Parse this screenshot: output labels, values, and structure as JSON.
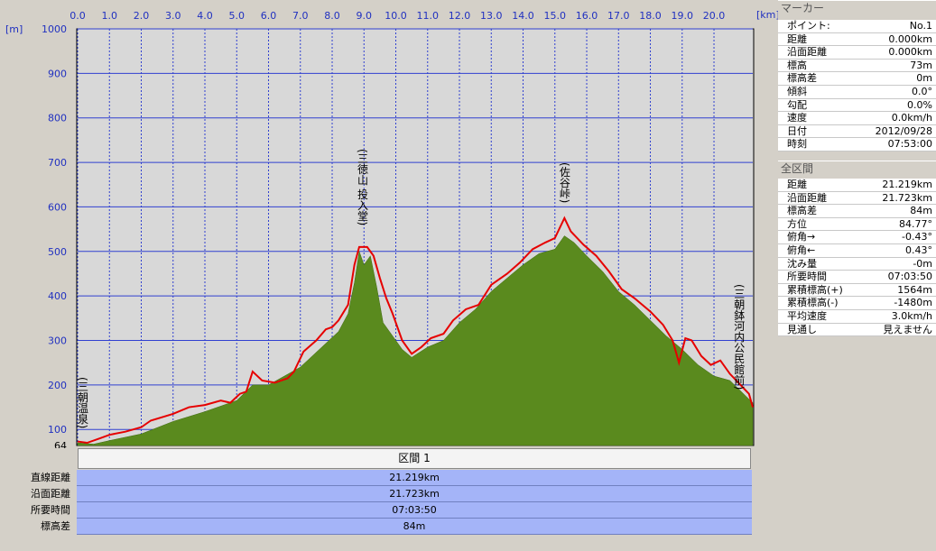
{
  "chart_data": {
    "type": "area",
    "x_unit": "[km]",
    "y_unit": "[m]",
    "xlim": [
      0,
      21.219
    ],
    "ylim": [
      64,
      1000
    ],
    "x_ticks": [
      "0.0",
      "1.0",
      "2.0",
      "3.0",
      "4.0",
      "5.0",
      "6.0",
      "7.0",
      "8.0",
      "9.0",
      "10.0",
      "11.0",
      "12.0",
      "13.0",
      "14.0",
      "15.0",
      "16.0",
      "17.0",
      "18.0",
      "19.0",
      "20.0"
    ],
    "y_ticks": [
      "1000",
      "900",
      "800",
      "700",
      "600",
      "500",
      "400",
      "300",
      "200",
      "100",
      "64"
    ],
    "grid": true,
    "series": [
      {
        "color": "#e60000",
        "points": [
          [
            0,
            73
          ],
          [
            0.3,
            70
          ],
          [
            0.7,
            80
          ],
          [
            1.0,
            88
          ],
          [
            1.5,
            95
          ],
          [
            2.0,
            105
          ],
          [
            2.3,
            120
          ],
          [
            3.0,
            135
          ],
          [
            3.5,
            150
          ],
          [
            4.0,
            155
          ],
          [
            4.5,
            165
          ],
          [
            4.8,
            160
          ],
          [
            5.1,
            180
          ],
          [
            5.3,
            185
          ],
          [
            5.5,
            230
          ],
          [
            5.8,
            210
          ],
          [
            6.2,
            205
          ],
          [
            6.6,
            215
          ],
          [
            6.8,
            230
          ],
          [
            7.1,
            275
          ],
          [
            7.5,
            300
          ],
          [
            7.8,
            325
          ],
          [
            8.0,
            330
          ],
          [
            8.2,
            345
          ],
          [
            8.5,
            380
          ],
          [
            8.7,
            470
          ],
          [
            8.85,
            510
          ],
          [
            9.1,
            510
          ],
          [
            9.3,
            490
          ],
          [
            9.5,
            440
          ],
          [
            9.7,
            395
          ],
          [
            9.9,
            360
          ],
          [
            10.2,
            300
          ],
          [
            10.5,
            270
          ],
          [
            10.8,
            285
          ],
          [
            11.1,
            305
          ],
          [
            11.5,
            315
          ],
          [
            11.8,
            345
          ],
          [
            12.2,
            370
          ],
          [
            12.6,
            380
          ],
          [
            13.0,
            425
          ],
          [
            13.5,
            450
          ],
          [
            13.9,
            475
          ],
          [
            14.3,
            505
          ],
          [
            14.7,
            520
          ],
          [
            15.0,
            530
          ],
          [
            15.3,
            575
          ],
          [
            15.5,
            545
          ],
          [
            15.9,
            515
          ],
          [
            16.3,
            490
          ],
          [
            16.7,
            455
          ],
          [
            17.1,
            415
          ],
          [
            17.5,
            395
          ],
          [
            18.0,
            365
          ],
          [
            18.4,
            335
          ],
          [
            18.7,
            300
          ],
          [
            18.9,
            250
          ],
          [
            19.1,
            305
          ],
          [
            19.3,
            300
          ],
          [
            19.6,
            265
          ],
          [
            19.9,
            245
          ],
          [
            20.2,
            255
          ],
          [
            20.5,
            225
          ],
          [
            20.9,
            195
          ],
          [
            21.1,
            180
          ],
          [
            21.219,
            150
          ]
        ]
      },
      {
        "color": "#5a8a1e",
        "points": [
          [
            0,
            70
          ],
          [
            0.5,
            67
          ],
          [
            1.0,
            75
          ],
          [
            2.0,
            90
          ],
          [
            3.0,
            118
          ],
          [
            4.0,
            140
          ],
          [
            5.0,
            165
          ],
          [
            5.5,
            200
          ],
          [
            6.0,
            200
          ],
          [
            7.0,
            240
          ],
          [
            7.6,
            280
          ],
          [
            8.2,
            320
          ],
          [
            8.5,
            360
          ],
          [
            8.7,
            430
          ],
          [
            8.85,
            500
          ],
          [
            9.0,
            470
          ],
          [
            9.2,
            490
          ],
          [
            9.4,
            420
          ],
          [
            9.6,
            340
          ],
          [
            9.8,
            320
          ],
          [
            10.2,
            280
          ],
          [
            10.5,
            262
          ],
          [
            11.0,
            285
          ],
          [
            11.5,
            300
          ],
          [
            12.0,
            340
          ],
          [
            12.5,
            370
          ],
          [
            13.0,
            410
          ],
          [
            13.5,
            440
          ],
          [
            14.0,
            470
          ],
          [
            14.5,
            495
          ],
          [
            15.0,
            505
          ],
          [
            15.3,
            535
          ],
          [
            15.6,
            520
          ],
          [
            16.0,
            490
          ],
          [
            16.5,
            455
          ],
          [
            17.0,
            410
          ],
          [
            17.5,
            380
          ],
          [
            18.0,
            345
          ],
          [
            18.5,
            310
          ],
          [
            19.0,
            280
          ],
          [
            19.5,
            245
          ],
          [
            20.0,
            220
          ],
          [
            20.5,
            210
          ],
          [
            21.0,
            175
          ],
          [
            21.219,
            160
          ]
        ]
      }
    ],
    "annotations": [
      {
        "text": "(三朝温泉)",
        "x": 0.1
      },
      {
        "text": "(三徳山 投入堂)",
        "x": 8.95
      },
      {
        "text": "(佐谷峠)",
        "x": 15.3
      },
      {
        "text": "(三朝鉢河内公民館前)",
        "x": 20.9
      }
    ]
  },
  "segment_table": {
    "header": "区間 1",
    "rows": [
      {
        "label": "直線距離",
        "value": "21.219km"
      },
      {
        "label": "沿面距離",
        "value": "21.723km"
      },
      {
        "label": "所要時間",
        "value": "07:03:50"
      },
      {
        "label": "標高差",
        "value": "84m"
      }
    ]
  },
  "marker_panel": {
    "title": "マーカー",
    "rows": [
      {
        "label": "ポイント:",
        "value": "No.1"
      },
      {
        "label": "距離",
        "value": "0.000km"
      },
      {
        "label": "沿面距離",
        "value": "0.000km"
      },
      {
        "label": "標高",
        "value": "73m"
      },
      {
        "label": "標高差",
        "value": "0m"
      },
      {
        "label": "傾斜",
        "value": "0.0°"
      },
      {
        "label": "勾配",
        "value": "0.0%"
      },
      {
        "label": "速度",
        "value": "0.0km/h"
      },
      {
        "label": "日付",
        "value": "2012/09/28"
      },
      {
        "label": "時刻",
        "value": "07:53:00"
      }
    ]
  },
  "total_panel": {
    "title": "全区間",
    "rows": [
      {
        "label": "距離",
        "value": "21.219km"
      },
      {
        "label": "沿面距離",
        "value": "21.723km"
      },
      {
        "label": "標高差",
        "value": "84m"
      },
      {
        "label": "方位",
        "value": "84.77°"
      },
      {
        "label": "俯角→",
        "value": "-0.43°"
      },
      {
        "label": "俯角←",
        "value": "0.43°"
      },
      {
        "label": "沈み量",
        "value": "-0m"
      },
      {
        "label": "所要時間",
        "value": "07:03:50"
      },
      {
        "label": "累積標高(+)",
        "value": "1564m"
      },
      {
        "label": "累積標高(-)",
        "value": "-1480m"
      },
      {
        "label": "平均速度",
        "value": "3.0km/h"
      },
      {
        "label": "見通し",
        "value": "見えません"
      }
    ]
  }
}
